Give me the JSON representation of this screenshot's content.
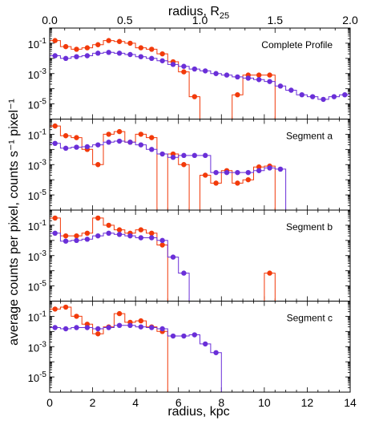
{
  "chart_data": {
    "type": "line",
    "colors": {
      "red": "#f23a0a",
      "purple": "#6a2fd8",
      "frame": "#000000"
    },
    "ylabel": "average counts per pixel, counts s⁻¹ pixel⁻¹",
    "xlabel": "radius, kpc",
    "top_axis": {
      "label": "radius, R",
      "label_sub": "25",
      "ticks": [
        "0.0",
        "0.5",
        "1.0",
        "1.5",
        "2.0"
      ],
      "range": [
        0,
        2.0
      ]
    },
    "xlim": [
      0,
      14
    ],
    "x_ticks": [
      "0",
      "2",
      "4",
      "6",
      "8",
      "10",
      "12",
      "14"
    ],
    "y_scale": "log",
    "ylim": [
      1e-06,
      1
    ],
    "y_tick_bases": [
      "10",
      "10",
      "10"
    ],
    "y_tick_exps": [
      "-1",
      "-3",
      "-5"
    ],
    "panels": [
      {
        "title": "Complete Profile",
        "series": [
          {
            "color": "red",
            "x": [
              0.25,
              0.75,
              1.25,
              1.75,
              2.25,
              2.75,
              3.25,
              3.75,
              4.25,
              4.75,
              5.25,
              5.75,
              6.25,
              6.75,
              7.25,
              7.75,
              8.25,
              8.75,
              9.25,
              9.75,
              10.25
            ],
            "y": [
              0.15,
              0.06,
              0.04,
              0.05,
              0.08,
              0.15,
              0.13,
              0.1,
              0.05,
              0.04,
              0.02,
              0.006,
              0.0013,
              3e-05,
              null,
              null,
              null,
              4e-05,
              0.0008,
              0.0008,
              0.0008
            ]
          },
          {
            "color": "purple",
            "x": [
              0.25,
              0.75,
              1.25,
              1.75,
              2.25,
              2.75,
              3.25,
              3.75,
              4.25,
              4.75,
              5.25,
              5.75,
              6.25,
              6.75,
              7.25,
              7.75,
              8.25,
              8.75,
              9.25,
              9.75,
              10.25,
              10.75,
              11.25,
              11.75,
              12.25,
              12.75,
              13.25,
              13.75
            ],
            "y": [
              0.015,
              0.01,
              0.013,
              0.015,
              0.022,
              0.025,
              0.022,
              0.018,
              0.013,
              0.01,
              0.007,
              0.004,
              0.003,
              0.002,
              0.0015,
              0.001,
              0.0008,
              0.0006,
              0.0005,
              0.0004,
              0.0003,
              0.00015,
              8e-05,
              4e-05,
              3e-05,
              2e-05,
              3e-05,
              4e-05
            ]
          }
        ]
      },
      {
        "title": "Segment a",
        "series": [
          {
            "color": "red",
            "x": [
              0.25,
              0.75,
              1.25,
              1.75,
              2.25,
              2.75,
              3.25,
              3.75,
              4.25,
              4.75,
              5.25,
              5.75,
              6.25,
              6.75,
              7.25,
              7.75,
              8.25,
              8.75,
              9.25,
              9.75,
              10.25
            ],
            "y": [
              0.35,
              0.08,
              0.06,
              0.01,
              0.001,
              0.1,
              0.15,
              0.03,
              0.1,
              0.06,
              null,
              0.005,
              0.001,
              null,
              0.0002,
              6e-05,
              0.0004,
              6e-05,
              0.0001,
              0.0007,
              0.0008
            ]
          },
          {
            "color": "purple",
            "x": [
              0.25,
              0.75,
              1.25,
              1.75,
              2.25,
              2.75,
              3.25,
              3.75,
              4.25,
              4.75,
              5.25,
              5.75,
              6.25,
              6.75,
              7.25,
              7.75,
              8.25,
              8.75,
              9.25,
              9.75,
              10.25,
              10.75
            ],
            "y": [
              0.025,
              0.012,
              0.014,
              0.015,
              0.02,
              0.03,
              0.035,
              0.03,
              0.02,
              0.01,
              0.005,
              0.003,
              0.004,
              0.004,
              0.004,
              0.0003,
              0.0003,
              0.0003,
              0.0003,
              0.0004,
              0.0006,
              0.0005
            ]
          }
        ]
      },
      {
        "title": "Segment b",
        "series": [
          {
            "color": "red",
            "x": [
              0.25,
              0.75,
              1.25,
              1.75,
              2.25,
              2.75,
              3.25,
              3.75,
              4.25,
              4.75,
              5.25,
              10.25
            ],
            "y": [
              0.3,
              0.02,
              0.02,
              0.03,
              0.3,
              0.1,
              0.05,
              0.03,
              0.05,
              0.03,
              0.005,
              7e-05
            ]
          },
          {
            "color": "purple",
            "x": [
              0.25,
              0.75,
              1.25,
              1.75,
              2.25,
              2.75,
              3.25,
              3.75,
              4.25,
              4.75,
              5.25,
              5.75,
              6.25
            ],
            "y": [
              0.03,
              0.009,
              0.01,
              0.012,
              0.02,
              0.03,
              0.025,
              0.02,
              0.015,
              0.015,
              0.01,
              0.0008,
              7e-05
            ]
          }
        ]
      },
      {
        "title": "Segment c",
        "series": [
          {
            "color": "red",
            "x": [
              0.25,
              0.75,
              1.25,
              1.75,
              2.25,
              2.75,
              3.25,
              3.75,
              4.25,
              4.75,
              5.25
            ],
            "y": [
              0.3,
              0.4,
              0.1,
              0.03,
              0.007,
              0.02,
              0.15,
              0.04,
              0.05,
              0.02,
              0.01
            ]
          },
          {
            "color": "purple",
            "x": [
              0.25,
              0.75,
              1.25,
              1.75,
              2.25,
              2.75,
              3.25,
              3.75,
              4.25,
              4.75,
              5.25,
              5.75,
              6.25,
              6.75,
              7.25,
              7.75
            ],
            "y": [
              0.018,
              0.015,
              0.018,
              0.018,
              0.015,
              0.018,
              0.025,
              0.025,
              0.02,
              0.018,
              0.015,
              0.005,
              0.005,
              0.006,
              0.0015,
              0.0004
            ]
          }
        ]
      }
    ]
  }
}
